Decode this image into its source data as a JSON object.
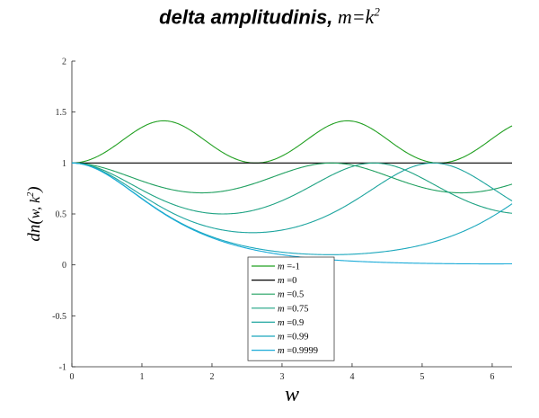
{
  "chart_data": {
    "type": "line",
    "title": "delta amplitudinis,",
    "title_math": "m=k",
    "title_math_sup": "2",
    "xlabel": "w",
    "ylabel_main": "dn",
    "ylabel_args": "w, k",
    "ylabel_sup": "2",
    "xlim": [
      0,
      6.2832
    ],
    "ylim": [
      -1,
      2
    ],
    "xticks": [
      "0",
      "1",
      "2",
      "3",
      "4",
      "5",
      "6"
    ],
    "yticks": [
      "-1",
      "-0.5",
      "0",
      "0.5",
      "1",
      "1.5",
      "2"
    ],
    "grid": false,
    "legend_position": "bottom-center",
    "legend_prefix": "m",
    "series": [
      {
        "name": "=-1",
        "m": -1,
        "color": "#22a022",
        "min": 1.0,
        "max": 1.4142
      },
      {
        "name": "=0",
        "m": 0,
        "color": "#000000",
        "min": 1.0,
        "max": 1.0
      },
      {
        "name": "=0.5",
        "m": 0.5,
        "color": "#20a060",
        "min": 0.7071,
        "max": 1.0
      },
      {
        "name": "=0.75",
        "m": 0.75,
        "color": "#1fa383",
        "min": 0.5,
        "max": 1.0
      },
      {
        "name": "=0.9",
        "m": 0.9,
        "color": "#1ea59f",
        "min": 0.3162,
        "max": 1.0
      },
      {
        "name": "=0.99",
        "m": 0.99,
        "color": "#1ca8bd",
        "min": 0.1,
        "max": 1.0
      },
      {
        "name": "=0.9999",
        "m": 0.9999,
        "color": "#1aabd8",
        "min": 0.01,
        "max": 1.0
      }
    ]
  }
}
